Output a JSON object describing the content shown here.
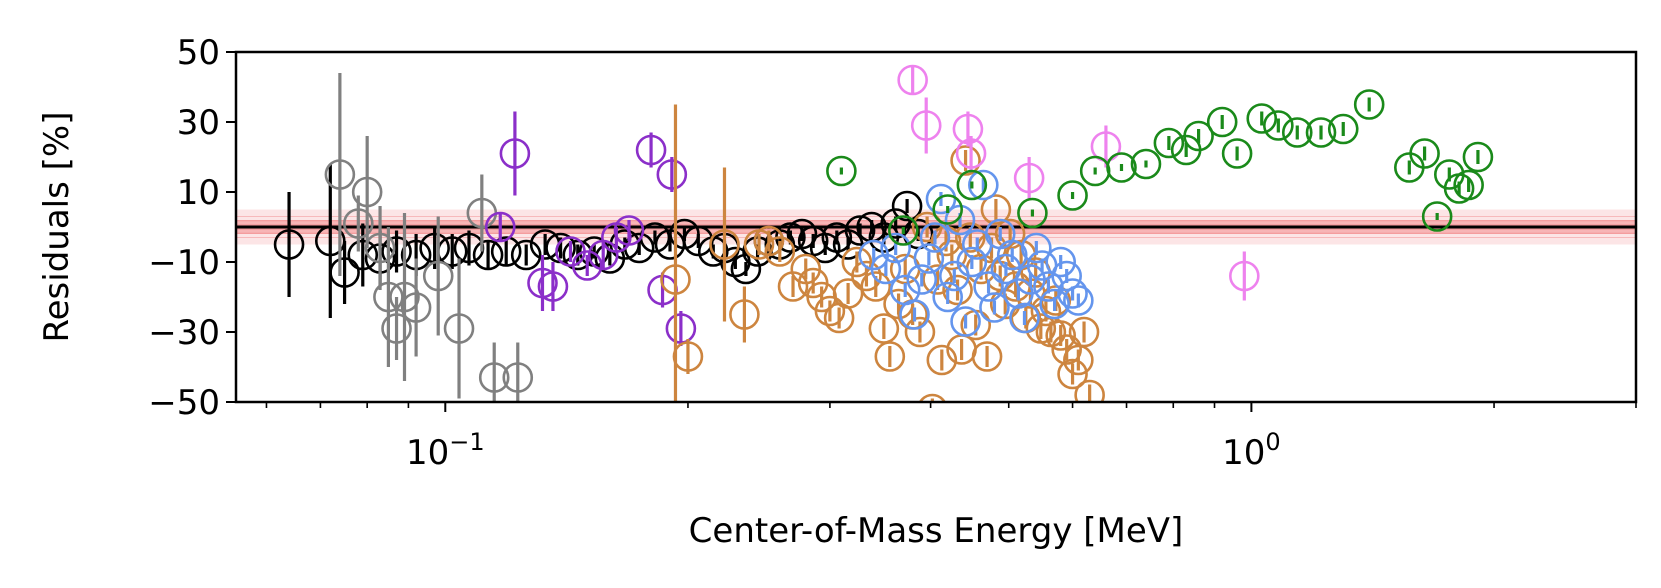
{
  "chart_data": {
    "type": "scatter",
    "title": "",
    "xlabel": "Center-of-Mass Energy [MeV]",
    "ylabel": "Residuals [%]",
    "xscale": "log",
    "xlim": [
      0.055,
      3.0
    ],
    "ylim": [
      -50,
      50
    ],
    "x_tick_labels": [
      {
        "value": 0.1,
        "base": "10",
        "exp": "−1"
      },
      {
        "value": 1.0,
        "base": "10",
        "exp": "0"
      }
    ],
    "y_tick_labels": [
      {
        "value": 50,
        "label": "50"
      },
      {
        "value": 30,
        "label": "30"
      },
      {
        "value": 10,
        "label": "10"
      },
      {
        "value": -10,
        "label": "−10"
      },
      {
        "value": -30,
        "label": "−30"
      },
      {
        "value": -50,
        "label": "−50"
      }
    ],
    "grid": false,
    "legend": "none",
    "reference_line": {
      "y": 0,
      "color": "#000000"
    },
    "uncertainty_band": {
      "color": "#e8393b",
      "center": 0,
      "inner": 2,
      "outer": 5
    },
    "series": [
      {
        "color": "#000000",
        "points": [
          [
            0.064,
            -5,
            15
          ],
          [
            0.072,
            -4,
            22
          ],
          [
            0.075,
            -13,
            9
          ],
          [
            0.079,
            -8,
            9
          ],
          [
            0.083,
            -9,
            8
          ],
          [
            0.087,
            -7,
            6
          ],
          [
            0.092,
            -8,
            6
          ],
          [
            0.097,
            -6,
            6
          ],
          [
            0.102,
            -7,
            5
          ],
          [
            0.107,
            -6,
            5
          ],
          [
            0.113,
            -8,
            4
          ],
          [
            0.119,
            -7,
            4
          ],
          [
            0.126,
            -8,
            3
          ],
          [
            0.133,
            -5,
            3
          ],
          [
            0.139,
            -6,
            3
          ],
          [
            0.146,
            -8,
            3
          ],
          [
            0.153,
            -7,
            2
          ],
          [
            0.16,
            -9,
            2
          ],
          [
            0.167,
            -5,
            2
          ],
          [
            0.174,
            -6,
            2
          ],
          [
            0.182,
            -3,
            2
          ],
          [
            0.19,
            -5,
            2
          ],
          [
            0.198,
            -2,
            2
          ],
          [
            0.206,
            -4,
            2
          ],
          [
            0.215,
            -7,
            2
          ],
          [
            0.222,
            -6,
            2
          ],
          [
            0.229,
            -10,
            2
          ],
          [
            0.236,
            -12,
            2
          ],
          [
            0.244,
            -7,
            2
          ],
          [
            0.252,
            -4,
            2
          ],
          [
            0.26,
            -5,
            2
          ],
          [
            0.268,
            -3,
            2
          ],
          [
            0.277,
            -2,
            2
          ],
          [
            0.286,
            -4,
            2
          ],
          [
            0.296,
            -6,
            2
          ],
          [
            0.306,
            -3,
            2
          ],
          [
            0.316,
            -5,
            2
          ],
          [
            0.327,
            -1,
            2
          ],
          [
            0.338,
            0,
            2
          ],
          [
            0.35,
            -3,
            2
          ],
          [
            0.362,
            1,
            2
          ],
          [
            0.374,
            6,
            2
          ],
          [
            0.386,
            -2,
            2
          ]
        ]
      },
      {
        "color": "#808080",
        "points": [
          [
            0.074,
            15,
            29
          ],
          [
            0.078,
            1,
            8
          ],
          [
            0.08,
            10,
            16
          ],
          [
            0.083,
            -6,
            12
          ],
          [
            0.085,
            -20,
            20
          ],
          [
            0.087,
            -29,
            9
          ],
          [
            0.089,
            -20,
            24
          ],
          [
            0.092,
            -23,
            14
          ],
          [
            0.098,
            -14,
            17
          ],
          [
            0.104,
            -29,
            20
          ],
          [
            0.111,
            4,
            11
          ],
          [
            0.115,
            -43,
            10
          ],
          [
            0.123,
            -43,
            10
          ]
        ]
      },
      {
        "color": "#8b2fc9",
        "points": [
          [
            0.117,
            0,
            4
          ],
          [
            0.122,
            21,
            12
          ],
          [
            0.132,
            -16,
            8
          ],
          [
            0.136,
            -17,
            7
          ],
          [
            0.143,
            -7,
            3
          ],
          [
            0.15,
            -11,
            3
          ],
          [
            0.157,
            -8,
            4
          ],
          [
            0.163,
            -3,
            3
          ],
          [
            0.169,
            -1,
            3
          ],
          [
            0.18,
            22,
            5
          ],
          [
            0.186,
            -18,
            5
          ],
          [
            0.191,
            15,
            5
          ],
          [
            0.196,
            -29,
            5
          ]
        ]
      },
      {
        "color": "#cd853f",
        "points": [
          [
            0.193,
            -15,
            50
          ],
          [
            0.2,
            -37,
            5
          ],
          [
            0.222,
            -5,
            22
          ],
          [
            0.235,
            -25,
            8
          ],
          [
            0.245,
            -5,
            3
          ],
          [
            0.252,
            -4,
            3
          ],
          [
            0.26,
            -7,
            3
          ],
          [
            0.27,
            -17,
            3
          ],
          [
            0.28,
            -12,
            3
          ],
          [
            0.286,
            -16,
            3
          ],
          [
            0.293,
            -20,
            3
          ],
          [
            0.3,
            -24,
            3
          ],
          [
            0.308,
            -26,
            3
          ],
          [
            0.316,
            -19,
            3
          ],
          [
            0.324,
            -10,
            3
          ],
          [
            0.333,
            -14,
            3
          ],
          [
            0.342,
            -17,
            3
          ],
          [
            0.35,
            -29,
            3
          ],
          [
            0.356,
            -37,
            3
          ],
          [
            0.365,
            -22,
            3
          ],
          [
            0.372,
            -12,
            3
          ],
          [
            0.38,
            -25,
            3
          ],
          [
            0.388,
            -30,
            3
          ],
          [
            0.396,
            0,
            3
          ],
          [
            0.402,
            -52,
            3
          ],
          [
            0.408,
            -15,
            3
          ],
          [
            0.413,
            -38,
            3
          ],
          [
            0.418,
            -4,
            3
          ],
          [
            0.425,
            -8,
            3
          ],
          [
            0.432,
            -18,
            3
          ],
          [
            0.437,
            -35,
            3
          ],
          [
            0.442,
            19,
            3
          ],
          [
            0.448,
            -3,
            3
          ],
          [
            0.455,
            -28,
            3
          ],
          [
            0.462,
            -12,
            3
          ],
          [
            0.47,
            -37,
            3
          ],
          [
            0.476,
            -6,
            3
          ],
          [
            0.482,
            5,
            3
          ],
          [
            0.488,
            -14,
            3
          ],
          [
            0.495,
            -22,
            3
          ],
          [
            0.502,
            -2,
            3
          ],
          [
            0.51,
            -17,
            3
          ],
          [
            0.518,
            -8,
            3
          ],
          [
            0.525,
            -26,
            3
          ],
          [
            0.532,
            -19,
            3
          ],
          [
            0.54,
            -13,
            3
          ],
          [
            0.548,
            -29,
            3
          ],
          [
            0.556,
            -24,
            3
          ],
          [
            0.564,
            -30,
            3
          ],
          [
            0.572,
            -21,
            3
          ],
          [
            0.58,
            -31,
            3
          ],
          [
            0.59,
            -35,
            3
          ],
          [
            0.6,
            -42,
            3
          ],
          [
            0.61,
            -38,
            3
          ],
          [
            0.62,
            -30,
            3
          ],
          [
            0.63,
            -48,
            3
          ]
        ]
      },
      {
        "color": "#6495ed",
        "points": [
          [
            0.34,
            -8,
            2
          ],
          [
            0.352,
            -12,
            2
          ],
          [
            0.362,
            -6,
            2
          ],
          [
            0.372,
            -18,
            2
          ],
          [
            0.382,
            -25,
            2
          ],
          [
            0.39,
            -15,
            2
          ],
          [
            0.398,
            -9,
            2
          ],
          [
            0.405,
            -3,
            2
          ],
          [
            0.412,
            8,
            2
          ],
          [
            0.42,
            -20,
            2
          ],
          [
            0.428,
            -14,
            2
          ],
          [
            0.435,
            2,
            2
          ],
          [
            0.442,
            -27,
            2
          ],
          [
            0.45,
            -10,
            2
          ],
          [
            0.457,
            -5,
            2
          ],
          [
            0.465,
            12,
            2
          ],
          [
            0.472,
            -17,
            2
          ],
          [
            0.48,
            -23,
            2
          ],
          [
            0.488,
            -2,
            2
          ],
          [
            0.496,
            -12,
            2
          ],
          [
            0.505,
            -8,
            2
          ],
          [
            0.514,
            -19,
            2
          ],
          [
            0.523,
            -26,
            2
          ],
          [
            0.532,
            -15,
            2
          ],
          [
            0.541,
            -6,
            2
          ],
          [
            0.55,
            -11,
            2
          ],
          [
            0.56,
            -17,
            2
          ],
          [
            0.57,
            -22,
            2
          ],
          [
            0.58,
            -10,
            2
          ],
          [
            0.59,
            -14,
            2
          ],
          [
            0.6,
            -19,
            2
          ],
          [
            0.61,
            -21,
            2
          ]
        ]
      },
      {
        "color": "#ee82ee",
        "points": [
          [
            0.38,
            42,
            4
          ],
          [
            0.395,
            29,
            8
          ],
          [
            0.445,
            28,
            5
          ],
          [
            0.449,
            21,
            5
          ],
          [
            0.53,
            14,
            6
          ],
          [
            0.66,
            23,
            6
          ],
          [
            0.98,
            -14,
            7
          ]
        ]
      },
      {
        "color": "#1a8a1a",
        "points": [
          [
            0.31,
            16,
            1
          ],
          [
            0.37,
            -1,
            1
          ],
          [
            0.42,
            5,
            1
          ],
          [
            0.45,
            12,
            1
          ],
          [
            0.535,
            4,
            1
          ],
          [
            0.6,
            9,
            1
          ],
          [
            0.64,
            16,
            1
          ],
          [
            0.69,
            17,
            1
          ],
          [
            0.74,
            18,
            1
          ],
          [
            0.79,
            24,
            2
          ],
          [
            0.83,
            22,
            2
          ],
          [
            0.86,
            26,
            2
          ],
          [
            0.92,
            30,
            2
          ],
          [
            0.96,
            21,
            2
          ],
          [
            1.03,
            31,
            2
          ],
          [
            1.08,
            29,
            2
          ],
          [
            1.14,
            27,
            2
          ],
          [
            1.22,
            27,
            2
          ],
          [
            1.3,
            28,
            2
          ],
          [
            1.4,
            35,
            2
          ],
          [
            1.57,
            17,
            2
          ],
          [
            1.64,
            21,
            2
          ],
          [
            1.7,
            3,
            1
          ],
          [
            1.76,
            15,
            2
          ],
          [
            1.81,
            11,
            2
          ],
          [
            1.86,
            12,
            2
          ],
          [
            1.91,
            20,
            2
          ]
        ]
      }
    ]
  }
}
